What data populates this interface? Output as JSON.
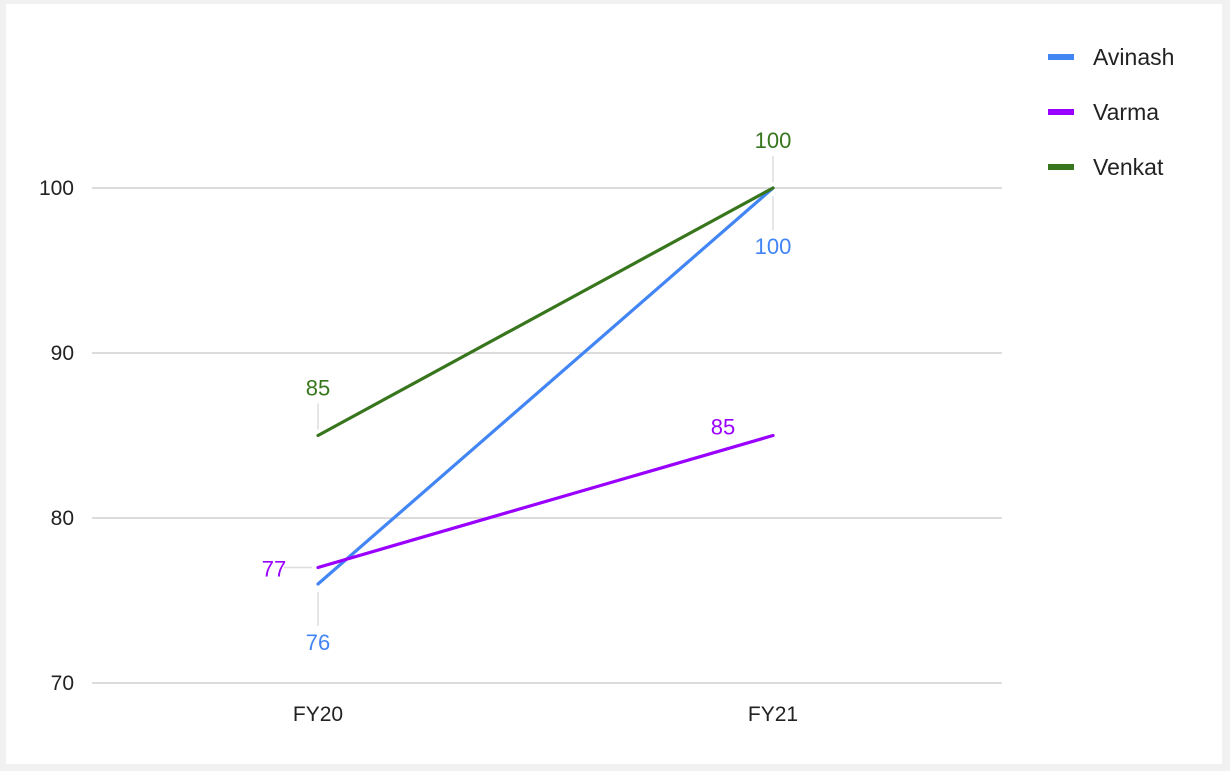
{
  "chart_data": {
    "type": "line",
    "title": "",
    "xlabel": "",
    "ylabel": "",
    "categories": [
      "FY20",
      "FY21"
    ],
    "ylim": [
      70,
      100
    ],
    "yticks": [
      70,
      80,
      90,
      100
    ],
    "grid": true,
    "legend_position": "top-right",
    "series": [
      {
        "name": "Avinash",
        "color": "#4285f4",
        "values": [
          76,
          100
        ],
        "labels": [
          "76",
          "100"
        ],
        "label_side": [
          "below",
          "below"
        ]
      },
      {
        "name": "Varma",
        "color": "#9900ff",
        "values": [
          77,
          85
        ],
        "labels": [
          "77",
          "85"
        ],
        "label_side": [
          "left",
          "above"
        ]
      },
      {
        "name": "Venkat",
        "color": "#38761d",
        "values": [
          85,
          100
        ],
        "labels": [
          "85",
          "100"
        ],
        "label_side": [
          "above",
          "above"
        ]
      }
    ]
  }
}
